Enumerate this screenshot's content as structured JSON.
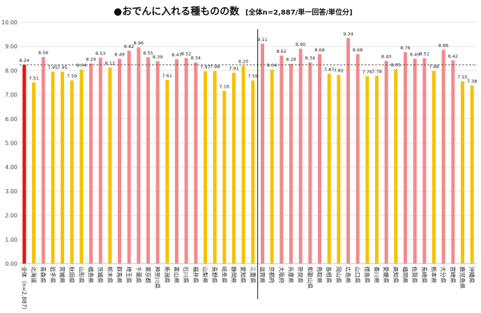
{
  "chart_data": {
    "type": "bar",
    "title": "●おでんに入れる種ものの数",
    "subtitle": "[全体n=2,887/単一回答/単位分]",
    "ylim": [
      0,
      10
    ],
    "yticks": [
      "0.00",
      "1.00",
      "2.00",
      "3.00",
      "4.00",
      "5.00",
      "6.00",
      "7.00",
      "8.00",
      "9.00",
      "10.00"
    ],
    "grid": true,
    "reference_line": 8.24,
    "colors": {
      "total": "#ee1111",
      "above": "#f28a8c",
      "below": "#f5c200",
      "reference": "#555555",
      "divider": "#111111"
    },
    "divider_after_index": 24,
    "categories": [
      "全体（n=2,887）",
      "北海道",
      "青森県",
      "岩手県",
      "宮城県",
      "秋田県",
      "山形県",
      "福島県",
      "茨城県",
      "栃木県",
      "群馬県",
      "埼玉県",
      "千葉県",
      "東京都",
      "神奈川県",
      "新潟県",
      "富山県",
      "石川県",
      "福井県",
      "山梨県",
      "長野県",
      "岐阜県",
      "静岡県",
      "愛知県",
      "三重県",
      "滋賀県",
      "京都府",
      "大阪府",
      "兵庫県",
      "奈良県",
      "和歌山県",
      "鳥取県",
      "島根県",
      "岡山県",
      "広島県",
      "山口県",
      "徳島県",
      "香川県",
      "愛媛県",
      "高知県",
      "福岡県",
      "佐賀県",
      "長崎県",
      "熊本県",
      "大分県",
      "宮崎県",
      "鹿児島県",
      "沖縄県"
    ],
    "values": [
      8.24,
      7.51,
      8.56,
      7.95,
      7.95,
      7.59,
      8.04,
      8.29,
      8.53,
      8.12,
      8.49,
      8.82,
      8.96,
      8.55,
      8.39,
      7.61,
      8.47,
      8.52,
      8.34,
      7.97,
      7.98,
      7.16,
      7.91,
      8.2,
      7.59,
      9.11,
      8.04,
      8.62,
      8.28,
      8.9,
      8.34,
      8.68,
      7.87,
      7.82,
      9.34,
      8.68,
      7.76,
      7.78,
      8.4,
      8.05,
      8.76,
      8.49,
      8.51,
      7.98,
      8.86,
      8.42,
      7.55,
      7.38
    ],
    "value_labels": [
      "8.24",
      "7.51",
      "8.56",
      "7.95",
      "7.95",
      "7.59",
      "8.04",
      "8.29",
      "8.53",
      "8.12",
      "8.49",
      "8.82",
      "8.96",
      "8.55",
      "8.39",
      "7.61",
      "8.47",
      "8.52",
      "8.34",
      "7.97",
      "7.98",
      "7.16",
      "7.91",
      "8.20",
      "7.59",
      "9.11",
      "8.04",
      "8.62",
      "8.28",
      "8.90",
      "8.34",
      "8.68",
      "7.87",
      "7.82",
      "9.34",
      "8.68",
      "7.76",
      "7.78",
      "8.40",
      "8.05",
      "8.76",
      "8.49",
      "8.51",
      "7.98",
      "8.86",
      "8.42",
      "7.55",
      "7.38"
    ]
  }
}
